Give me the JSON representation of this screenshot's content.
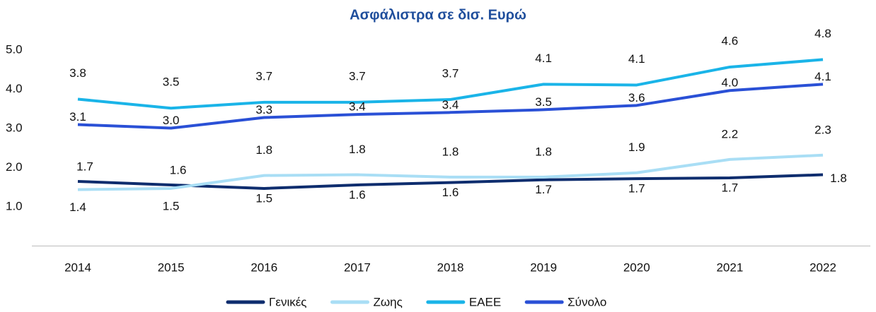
{
  "chart_data": {
    "type": "line",
    "title": "Ασφάλιστρα σε δισ. Ευρώ",
    "categories": [
      "2014",
      "2015",
      "2016",
      "2017",
      "2018",
      "2019",
      "2020",
      "2021",
      "2022"
    ],
    "ylim": [
      0,
      5.2
    ],
    "yticks": [
      {
        "value": 1,
        "label": "1.0"
      },
      {
        "value": 2,
        "label": "2.0"
      },
      {
        "value": 3,
        "label": "3.0"
      },
      {
        "value": 4,
        "label": "4.0"
      },
      {
        "value": 5,
        "label": "5.0"
      }
    ],
    "grid": false,
    "legend": "bottom",
    "series": [
      {
        "name": "Γενικές",
        "color": "#0e2d6e",
        "values": [
          1.65,
          1.56,
          1.47,
          1.56,
          1.62,
          1.69,
          1.72,
          1.74,
          1.82
        ],
        "value_labels": [
          "1.7",
          "1.6",
          "1.5",
          "1.6",
          "1.6",
          "1.7",
          "1.7",
          "1.7",
          "1.8"
        ]
      },
      {
        "name": "Ζωης",
        "color": "#a9def5",
        "values": [
          1.44,
          1.47,
          1.8,
          1.82,
          1.76,
          1.76,
          1.87,
          2.21,
          2.32
        ],
        "value_labels": [
          "1.4",
          "1.5",
          "1.8",
          "1.8",
          "1.8",
          "1.8",
          "1.9",
          "2.2",
          "2.3"
        ]
      },
      {
        "name": "ΕΑΕΕ",
        "color": "#1ab4e8",
        "values": [
          3.75,
          3.52,
          3.67,
          3.67,
          3.74,
          4.13,
          4.11,
          4.57,
          4.76
        ],
        "value_labels": [
          "3.8",
          "3.5",
          "3.7",
          "3.7",
          "3.7",
          "4.1",
          "4.1",
          "4.6",
          "4.8"
        ]
      },
      {
        "name": "Σύνολο",
        "color": "#2a50d6",
        "values": [
          3.1,
          3.01,
          3.28,
          3.36,
          3.41,
          3.48,
          3.59,
          3.97,
          4.13
        ],
        "value_labels": [
          "3.1",
          "3.0",
          "3.3",
          "3.4",
          "3.4",
          "3.5",
          "3.6",
          "4.0",
          "4.1"
        ]
      }
    ]
  }
}
